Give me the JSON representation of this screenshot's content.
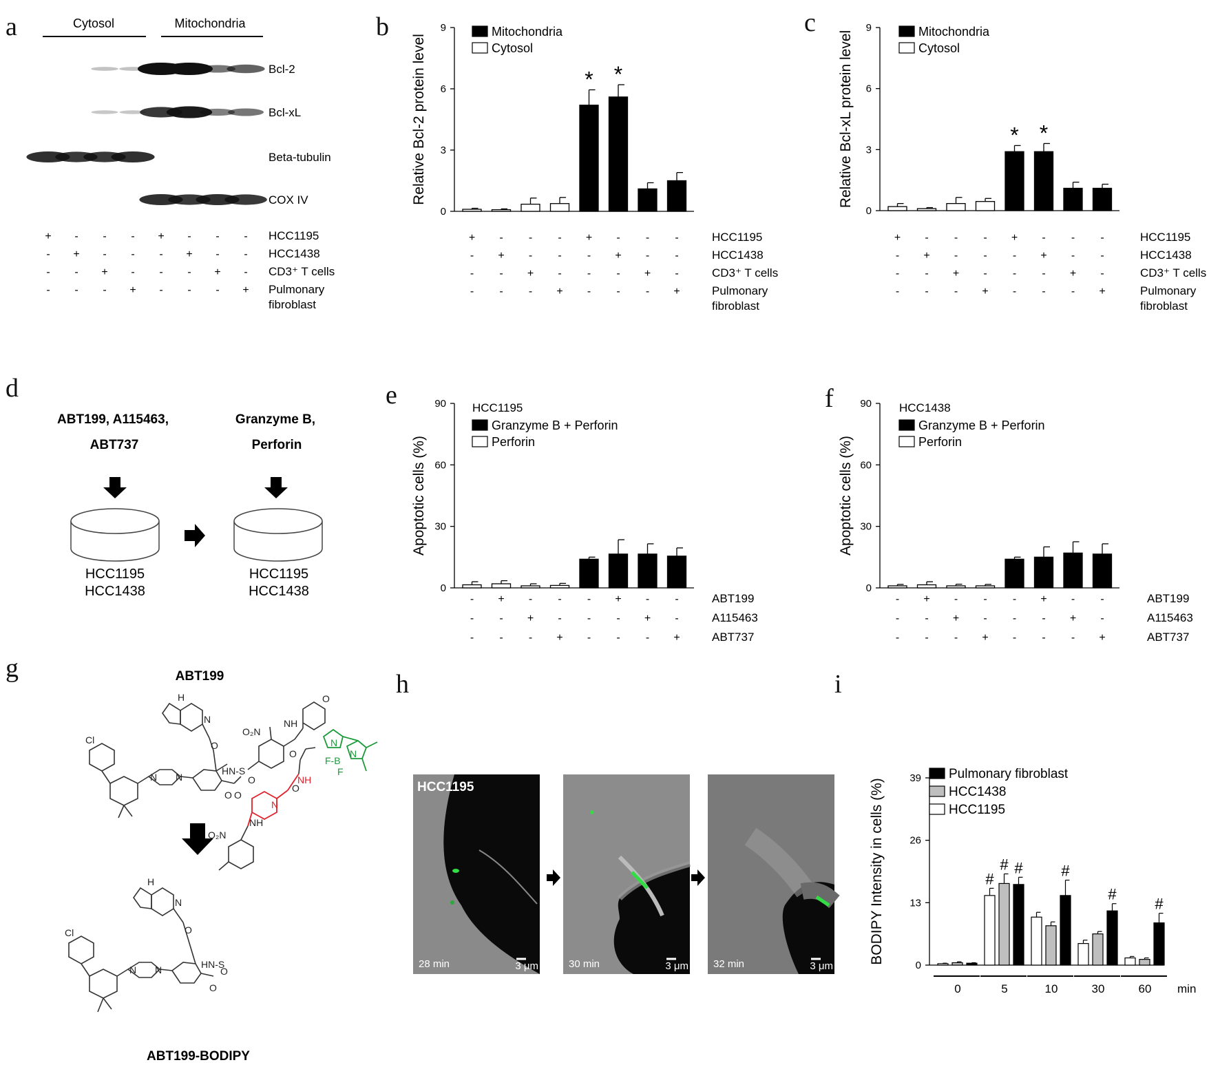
{
  "panel_labels": {
    "a": "a",
    "b": "b",
    "c": "c",
    "d": "d",
    "e": "e",
    "f": "f",
    "g": "g",
    "h": "h",
    "i": "i"
  },
  "panel_a": {
    "group_labels": [
      "Cytosol",
      "Mitochondria"
    ],
    "blot_labels": [
      "Bcl-2",
      "Bcl-xL",
      "Beta-tubulin",
      "COX IV"
    ],
    "blots": [
      {
        "name": "Bcl-2",
        "intensity": [
          0,
          0,
          0.12,
          0.12,
          1,
          1,
          0.5,
          0.6
        ]
      },
      {
        "name": "Bcl-xL",
        "intensity": [
          0,
          0,
          0.1,
          0.1,
          0.8,
          0.95,
          0.45,
          0.5
        ]
      },
      {
        "name": "Beta-tubulin",
        "intensity": [
          0.85,
          0.8,
          0.8,
          0.85,
          0,
          0,
          0,
          0
        ]
      },
      {
        "name": "COX IV",
        "intensity": [
          0,
          0,
          0,
          0,
          0.85,
          0.8,
          0.85,
          0.8
        ]
      }
    ],
    "conditions": [
      {
        "label": "HCC1195",
        "signs": [
          "+",
          "-",
          "-",
          "-",
          "+",
          "-",
          "-",
          "-"
        ]
      },
      {
        "label": "HCC1438",
        "signs": [
          "-",
          "+",
          "-",
          "-",
          "-",
          "+",
          "-",
          "-"
        ]
      },
      {
        "label": "CD3⁺ T cells",
        "signs": [
          "-",
          "-",
          "+",
          "-",
          "-",
          "-",
          "+",
          "-"
        ]
      },
      {
        "label": "Pulmonary\nfibroblast",
        "signs": [
          "-",
          "-",
          "-",
          "+",
          "-",
          "-",
          "-",
          "+"
        ]
      }
    ]
  },
  "panel_d": {
    "drug_text": [
      "ABT199, A115463,",
      "ABT737"
    ],
    "enzyme_text": [
      "Granzyme B,",
      "Perforin"
    ],
    "dish_text_1": [
      "HCC1195",
      "HCC1438"
    ],
    "dish_text_2": [
      "HCC1195",
      "HCC1438"
    ]
  },
  "panel_g": {
    "top_label": "ABT199",
    "bottom_label": "ABT199-BODIPY",
    "atoms_top": [
      "Cl",
      "N",
      "N",
      "H",
      "O",
      "N",
      "O₂N",
      "NH",
      "O",
      "HN-S",
      "O",
      "O",
      "O"
    ],
    "atoms_bottom": [
      "Cl",
      "N",
      "N",
      "H",
      "O",
      "N",
      "O₂N",
      "NH",
      "HN-S",
      "O",
      "O",
      "O",
      "N",
      "NH",
      "O",
      "N",
      "F-B",
      "F",
      "N"
    ]
  },
  "panel_h": {
    "cell_line": "HCC1195",
    "frames": [
      {
        "time": "28 min",
        "scale": "3 μm"
      },
      {
        "time": "30 min",
        "scale": "3 μm"
      },
      {
        "time": "32 min",
        "scale": "3 μm"
      }
    ]
  },
  "chart_data": [
    {
      "id": "b",
      "type": "bar",
      "ylabel": "Relative  Bcl-2 protein level",
      "ylim": [
        0,
        9
      ],
      "yticks": [
        0,
        3,
        6,
        9
      ],
      "legend": [
        {
          "name": "Mitochondria",
          "color": "#000000"
        },
        {
          "name": "Cytosol",
          "color": "#ffffff"
        }
      ],
      "values": [
        0.1,
        0.08,
        0.35,
        0.38,
        5.2,
        5.6,
        1.1,
        1.5
      ],
      "errors": [
        0.05,
        0.04,
        0.3,
        0.3,
        0.75,
        0.6,
        0.3,
        0.4
      ],
      "fills": [
        "#ffffff",
        "#ffffff",
        "#ffffff",
        "#ffffff",
        "#000000",
        "#000000",
        "#000000",
        "#000000"
      ],
      "marks": [
        "",
        "",
        "",
        "",
        "*",
        "*",
        "",
        ""
      ],
      "conditions": [
        {
          "label": "HCC1195",
          "signs": [
            "+",
            "-",
            "-",
            "-",
            "+",
            "-",
            "-",
            "-"
          ]
        },
        {
          "label": "HCC1438",
          "signs": [
            "-",
            "+",
            "-",
            "-",
            "-",
            "+",
            "-",
            "-"
          ]
        },
        {
          "label": "CD3⁺ T cells",
          "signs": [
            "-",
            "-",
            "+",
            "-",
            "-",
            "-",
            "+",
            "-"
          ]
        },
        {
          "label": "Pulmonary\nfibroblast",
          "signs": [
            "-",
            "-",
            "-",
            "+",
            "-",
            "-",
            "-",
            "+"
          ]
        }
      ]
    },
    {
      "id": "c",
      "type": "bar",
      "ylabel": "Relative  Bcl-xL protein level",
      "ylim": [
        0,
        9
      ],
      "yticks": [
        0,
        3,
        6,
        9
      ],
      "legend": [
        {
          "name": "Mitochondria",
          "color": "#000000"
        },
        {
          "name": "Cytosol",
          "color": "#ffffff"
        }
      ],
      "values": [
        0.2,
        0.1,
        0.35,
        0.45,
        2.9,
        2.9,
        1.1,
        1.1
      ],
      "errors": [
        0.15,
        0.05,
        0.3,
        0.15,
        0.3,
        0.4,
        0.3,
        0.2
      ],
      "fills": [
        "#ffffff",
        "#ffffff",
        "#ffffff",
        "#ffffff",
        "#000000",
        "#000000",
        "#000000",
        "#000000"
      ],
      "marks": [
        "",
        "",
        "",
        "",
        "*",
        "*",
        "",
        ""
      ],
      "conditions": [
        {
          "label": "HCC1195",
          "signs": [
            "+",
            "-",
            "-",
            "-",
            "+",
            "-",
            "-",
            "-"
          ]
        },
        {
          "label": "HCC1438",
          "signs": [
            "-",
            "+",
            "-",
            "-",
            "-",
            "+",
            "-",
            "-"
          ]
        },
        {
          "label": "CD3⁺ T cells",
          "signs": [
            "-",
            "-",
            "+",
            "-",
            "-",
            "-",
            "+",
            "-"
          ]
        },
        {
          "label": "Pulmonary\nfibroblast",
          "signs": [
            "-",
            "-",
            "-",
            "+",
            "-",
            "-",
            "-",
            "+"
          ]
        }
      ]
    },
    {
      "id": "e",
      "type": "bar",
      "title": "HCC1195",
      "ylabel": "Apoptotic cells (%)",
      "ylim": [
        0,
        90
      ],
      "yticks": [
        0,
        30,
        60,
        90
      ],
      "legend": [
        {
          "name": "Granzyme  B + Perforin",
          "color": "#000000"
        },
        {
          "name": "Perforin",
          "color": "#ffffff"
        }
      ],
      "values": [
        1.5,
        2,
        1,
        1.2,
        14,
        16.5,
        16.5,
        15.5
      ],
      "errors": [
        1.5,
        1.5,
        1,
        1,
        1,
        7,
        5,
        4
      ],
      "fills": [
        "#ffffff",
        "#ffffff",
        "#ffffff",
        "#ffffff",
        "#000000",
        "#000000",
        "#000000",
        "#000000"
      ],
      "marks": [
        "",
        "",
        "",
        "",
        "",
        "",
        "",
        ""
      ],
      "conditions": [
        {
          "label": "ABT199",
          "signs": [
            "-",
            "+",
            "-",
            "-",
            "-",
            "+",
            "-",
            "-"
          ]
        },
        {
          "label": "A115463",
          "signs": [
            "-",
            "-",
            "+",
            "-",
            "-",
            "-",
            "+",
            "-"
          ]
        },
        {
          "label": "ABT737",
          "signs": [
            "-",
            "-",
            "-",
            "+",
            "-",
            "-",
            "-",
            "+"
          ]
        }
      ]
    },
    {
      "id": "f",
      "type": "bar",
      "title": "HCC1438",
      "ylabel": "Apoptotic cells (%)",
      "ylim": [
        0,
        90
      ],
      "yticks": [
        0,
        30,
        60,
        90
      ],
      "legend": [
        {
          "name": "Granzyme  B + Perforin",
          "color": "#000000"
        },
        {
          "name": "Perforin",
          "color": "#ffffff"
        }
      ],
      "values": [
        1,
        1.5,
        1,
        1,
        14,
        15,
        17,
        16.5
      ],
      "errors": [
        0.7,
        1.5,
        0.8,
        0.7,
        1,
        5,
        5.5,
        5
      ],
      "fills": [
        "#ffffff",
        "#ffffff",
        "#ffffff",
        "#ffffff",
        "#000000",
        "#000000",
        "#000000",
        "#000000"
      ],
      "marks": [
        "",
        "",
        "",
        "",
        "",
        "",
        "",
        ""
      ],
      "conditions": [
        {
          "label": "ABT199",
          "signs": [
            "-",
            "+",
            "-",
            "-",
            "-",
            "+",
            "-",
            "-"
          ]
        },
        {
          "label": "A115463",
          "signs": [
            "-",
            "-",
            "+",
            "-",
            "-",
            "-",
            "+",
            "-"
          ]
        },
        {
          "label": "ABT737",
          "signs": [
            "-",
            "-",
            "-",
            "+",
            "-",
            "-",
            "-",
            "+"
          ]
        }
      ]
    },
    {
      "id": "i",
      "type": "bar",
      "ylabel": "BODIPY Intensity in cells (%)",
      "ylim": [
        0,
        39
      ],
      "yticks": [
        0,
        13,
        26,
        39
      ],
      "categories": [
        "0",
        "5",
        "10",
        "30",
        "60"
      ],
      "xunit": "min",
      "series": [
        {
          "name": "HCC1195",
          "color": "#ffffff",
          "values": [
            0.3,
            14.5,
            10,
            4.5,
            1.5
          ],
          "errors": [
            0.1,
            1.5,
            1,
            0.7,
            0.3
          ],
          "marks": [
            "",
            "#",
            "",
            "",
            ""
          ]
        },
        {
          "name": "HCC1438",
          "color": "#bfbfbf",
          "values": [
            0.5,
            17,
            8.2,
            6.5,
            1.2
          ],
          "errors": [
            0.2,
            2,
            0.8,
            0.5,
            0.3
          ],
          "marks": [
            "",
            "#",
            "",
            "",
            ""
          ]
        },
        {
          "name": "Pulmonary fibroblast",
          "color": "#000000",
          "values": [
            0.4,
            16.8,
            14.5,
            11.3,
            8.8
          ],
          "errors": [
            0.1,
            1.5,
            3.2,
            1.5,
            2
          ],
          "marks": [
            "",
            "#",
            "#",
            "#",
            "#"
          ]
        }
      ],
      "legend_order": [
        "Pulmonary fibroblast",
        "HCC1438",
        "HCC1195"
      ]
    }
  ]
}
